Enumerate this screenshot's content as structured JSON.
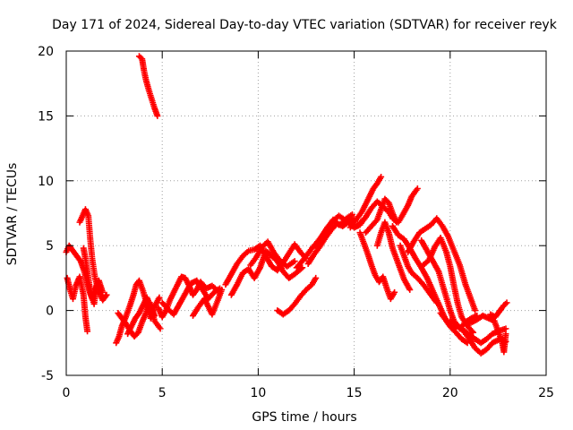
{
  "chart_data": {
    "type": "scatter",
    "title": "Day 171 of 2024, Sidereal Day-to-day VTEC variation (SDTVAR) for receiver reyk",
    "xlabel": "GPS time / hours",
    "ylabel": "SDTVAR / TECUs",
    "xlim": [
      0,
      25
    ],
    "ylim": [
      -5,
      20
    ],
    "xticks": [
      0,
      5,
      10,
      15,
      20,
      25
    ],
    "yticks": [
      -5,
      0,
      5,
      10,
      15,
      20
    ],
    "grid": true,
    "marker": "+",
    "series_color": "#ff0000",
    "tracks": [
      [
        [
          0.0,
          4.5
        ],
        [
          0.15,
          5.0
        ],
        [
          0.35,
          4.6
        ],
        [
          0.55,
          4.2
        ],
        [
          0.75,
          3.8
        ],
        [
          0.9,
          3.2
        ],
        [
          1.05,
          2.4
        ],
        [
          1.2,
          1.5
        ],
        [
          1.35,
          0.9
        ],
        [
          1.5,
          1.6
        ],
        [
          1.7,
          2.3
        ],
        [
          1.9,
          1.4
        ]
      ],
      [
        [
          0.05,
          2.5
        ],
        [
          0.2,
          1.6
        ],
        [
          0.35,
          0.9
        ],
        [
          0.5,
          1.9
        ],
        [
          0.7,
          2.6
        ],
        [
          0.9,
          1.2
        ],
        [
          1.0,
          -0.5
        ],
        [
          1.1,
          -1.6
        ]
      ],
      [
        [
          0.7,
          6.8
        ],
        [
          0.85,
          7.3
        ],
        [
          1.0,
          7.8
        ],
        [
          1.15,
          7.3
        ],
        [
          1.25,
          5.5
        ],
        [
          1.35,
          4.0
        ],
        [
          1.5,
          2.5
        ],
        [
          1.7,
          1.5
        ],
        [
          1.9,
          0.8
        ],
        [
          2.1,
          1.2
        ]
      ],
      [
        [
          0.9,
          4.8
        ],
        [
          1.0,
          4.0
        ],
        [
          1.1,
          3.0
        ],
        [
          1.2,
          2.0
        ],
        [
          1.3,
          1.2
        ],
        [
          1.45,
          0.5
        ],
        [
          1.6,
          2.2
        ],
        [
          1.8,
          1.8
        ]
      ],
      [
        [
          3.8,
          19.6
        ],
        [
          3.95,
          19.4
        ],
        [
          4.05,
          18.5
        ],
        [
          4.15,
          17.8
        ],
        [
          4.3,
          17.0
        ],
        [
          4.45,
          16.3
        ],
        [
          4.6,
          15.6
        ],
        [
          4.75,
          15.0
        ]
      ],
      [
        [
          2.6,
          -2.5
        ],
        [
          2.75,
          -2.0
        ],
        [
          2.9,
          -1.2
        ],
        [
          3.1,
          -0.5
        ],
        [
          3.3,
          0.3
        ],
        [
          3.5,
          1.2
        ],
        [
          3.65,
          2.0
        ],
        [
          3.8,
          2.3
        ],
        [
          4.0,
          1.5
        ],
        [
          4.2,
          0.5
        ],
        [
          4.4,
          -0.6
        ],
        [
          4.6,
          0.3
        ],
        [
          4.85,
          1.0
        ]
      ],
      [
        [
          2.7,
          -0.2
        ],
        [
          2.9,
          -0.6
        ],
        [
          3.1,
          -1.0
        ],
        [
          3.3,
          -1.5
        ],
        [
          3.55,
          -2.0
        ],
        [
          3.75,
          -1.7
        ],
        [
          3.95,
          -0.9
        ],
        [
          4.15,
          -0.2
        ],
        [
          4.35,
          0.6
        ],
        [
          4.6,
          -0.8
        ],
        [
          4.9,
          -1.4
        ]
      ],
      [
        [
          3.2,
          -1.8
        ],
        [
          3.4,
          -1.2
        ],
        [
          3.6,
          -0.6
        ],
        [
          3.8,
          -0.2
        ],
        [
          4.0,
          0.4
        ],
        [
          4.2,
          1.0
        ],
        [
          4.4,
          0.3
        ],
        [
          4.6,
          -0.4
        ]
      ],
      [
        [
          4.8,
          0.2
        ],
        [
          5.0,
          -0.5
        ],
        [
          5.2,
          0.0
        ],
        [
          5.4,
          0.8
        ],
        [
          5.6,
          1.4
        ],
        [
          5.8,
          2.0
        ],
        [
          6.0,
          2.6
        ],
        [
          6.2,
          2.5
        ],
        [
          6.4,
          1.9
        ],
        [
          6.6,
          1.2
        ],
        [
          6.8,
          1.6
        ],
        [
          7.0,
          2.2
        ],
        [
          7.3,
          1.7
        ],
        [
          7.6,
          1.9
        ],
        [
          7.9,
          1.5
        ]
      ],
      [
        [
          5.0,
          0.6
        ],
        [
          5.3,
          0.1
        ],
        [
          5.6,
          -0.3
        ],
        [
          5.9,
          0.5
        ],
        [
          6.2,
          1.3
        ],
        [
          6.5,
          2.1
        ],
        [
          6.8,
          2.3
        ],
        [
          7.1,
          1.6
        ],
        [
          7.4,
          0.9
        ],
        [
          7.7,
          1.4
        ],
        [
          8.0,
          1.7
        ]
      ],
      [
        [
          6.6,
          -0.4
        ],
        [
          6.9,
          0.3
        ],
        [
          7.2,
          0.9
        ],
        [
          7.4,
          0.3
        ],
        [
          7.6,
          -0.3
        ],
        [
          7.9,
          0.8
        ],
        [
          8.1,
          1.6
        ]
      ],
      [
        [
          8.3,
          2.0
        ],
        [
          8.6,
          2.8
        ],
        [
          8.9,
          3.6
        ],
        [
          9.2,
          4.2
        ],
        [
          9.5,
          4.6
        ],
        [
          9.8,
          4.7
        ],
        [
          10.1,
          5.0
        ],
        [
          10.4,
          4.2
        ],
        [
          10.7,
          3.4
        ],
        [
          11.0,
          3.1
        ],
        [
          11.3,
          3.7
        ],
        [
          11.6,
          4.4
        ],
        [
          11.9,
          5.1
        ],
        [
          12.2,
          4.5
        ],
        [
          12.5,
          4.0
        ]
      ],
      [
        [
          8.6,
          1.2
        ],
        [
          8.9,
          2.0
        ],
        [
          9.2,
          2.9
        ],
        [
          9.5,
          3.2
        ],
        [
          9.8,
          2.5
        ],
        [
          10.1,
          3.3
        ],
        [
          10.4,
          4.6
        ],
        [
          10.7,
          4.2
        ],
        [
          11.0,
          3.8
        ],
        [
          11.3,
          3.0
        ],
        [
          11.6,
          2.5
        ],
        [
          11.9,
          2.8
        ],
        [
          12.3,
          3.3
        ]
      ],
      [
        [
          9.6,
          3.5
        ],
        [
          9.9,
          4.1
        ],
        [
          10.2,
          4.9
        ],
        [
          10.5,
          5.3
        ],
        [
          10.8,
          4.5
        ],
        [
          11.1,
          3.9
        ],
        [
          11.5,
          3.4
        ],
        [
          11.9,
          3.8
        ]
      ],
      [
        [
          11.0,
          0.0
        ],
        [
          11.3,
          -0.3
        ],
        [
          11.6,
          0.0
        ],
        [
          11.9,
          0.5
        ],
        [
          12.2,
          1.1
        ],
        [
          12.5,
          1.6
        ],
        [
          12.8,
          2.0
        ],
        [
          13.0,
          2.5
        ]
      ],
      [
        [
          12.0,
          3.3
        ],
        [
          12.4,
          4.0
        ],
        [
          12.8,
          4.8
        ],
        [
          13.2,
          5.5
        ],
        [
          13.6,
          6.3
        ],
        [
          13.9,
          7.0
        ],
        [
          14.2,
          6.6
        ],
        [
          14.6,
          6.9
        ],
        [
          15.0,
          6.4
        ],
        [
          15.3,
          6.6
        ],
        [
          15.6,
          7.2
        ]
      ],
      [
        [
          12.6,
          3.6
        ],
        [
          12.9,
          4.3
        ],
        [
          13.2,
          4.9
        ],
        [
          13.5,
          5.6
        ],
        [
          13.8,
          6.2
        ],
        [
          14.1,
          6.7
        ],
        [
          14.4,
          6.5
        ],
        [
          14.7,
          6.8
        ],
        [
          15.0,
          7.1
        ]
      ],
      [
        [
          13.0,
          5.0
        ],
        [
          13.3,
          5.7
        ],
        [
          13.6,
          6.4
        ],
        [
          13.9,
          6.9
        ],
        [
          14.2,
          7.3
        ],
        [
          14.5,
          7.0
        ],
        [
          14.9,
          7.4
        ]
      ],
      [
        [
          14.8,
          6.4
        ],
        [
          15.1,
          7.0
        ],
        [
          15.4,
          7.6
        ],
        [
          15.6,
          8.2
        ],
        [
          15.8,
          8.8
        ],
        [
          16.0,
          9.4
        ],
        [
          16.2,
          9.8
        ],
        [
          16.4,
          10.3
        ]
      ],
      [
        [
          15.3,
          6.0
        ],
        [
          15.5,
          5.2
        ],
        [
          15.7,
          4.4
        ],
        [
          15.9,
          3.5
        ],
        [
          16.1,
          2.7
        ],
        [
          16.3,
          2.2
        ],
        [
          16.5,
          2.6
        ],
        [
          16.7,
          1.7
        ],
        [
          16.9,
          0.9
        ],
        [
          17.1,
          1.4
        ]
      ],
      [
        [
          15.2,
          6.6
        ],
        [
          15.6,
          7.2
        ],
        [
          15.9,
          7.9
        ],
        [
          16.2,
          8.4
        ],
        [
          16.5,
          8.0
        ],
        [
          16.8,
          7.6
        ],
        [
          17.0,
          7.1
        ],
        [
          17.3,
          6.8
        ],
        [
          17.5,
          7.3
        ],
        [
          17.8,
          8.1
        ],
        [
          18.0,
          8.8
        ],
        [
          18.3,
          9.4
        ]
      ],
      [
        [
          15.6,
          6.0
        ],
        [
          15.9,
          6.5
        ],
        [
          16.2,
          7.0
        ],
        [
          16.4,
          7.8
        ],
        [
          16.6,
          8.6
        ],
        [
          16.8,
          8.3
        ],
        [
          17.0,
          7.5
        ],
        [
          17.2,
          6.8
        ]
      ],
      [
        [
          16.2,
          5.0
        ],
        [
          16.4,
          6.0
        ],
        [
          16.6,
          6.8
        ],
        [
          16.8,
          6.0
        ],
        [
          17.0,
          4.8
        ],
        [
          17.3,
          3.6
        ],
        [
          17.6,
          2.4
        ],
        [
          17.9,
          1.6
        ]
      ],
      [
        [
          17.4,
          5.0
        ],
        [
          17.6,
          4.2
        ],
        [
          17.8,
          3.4
        ],
        [
          18.0,
          2.9
        ],
        [
          18.3,
          2.5
        ],
        [
          18.6,
          2.0
        ],
        [
          18.9,
          1.4
        ],
        [
          19.1,
          1.0
        ],
        [
          19.3,
          0.6
        ]
      ],
      [
        [
          17.0,
          6.5
        ],
        [
          17.3,
          5.8
        ],
        [
          17.6,
          5.5
        ],
        [
          17.9,
          4.8
        ],
        [
          18.2,
          4.0
        ],
        [
          18.5,
          3.3
        ],
        [
          18.8,
          2.5
        ],
        [
          19.1,
          1.5
        ],
        [
          19.4,
          0.5
        ],
        [
          19.7,
          -0.5
        ],
        [
          20.0,
          -1.2
        ],
        [
          20.3,
          -1.7
        ],
        [
          20.6,
          -2.2
        ],
        [
          20.9,
          -2.5
        ]
      ],
      [
        [
          17.8,
          4.5
        ],
        [
          18.1,
          5.3
        ],
        [
          18.4,
          6.0
        ],
        [
          18.7,
          6.3
        ],
        [
          19.0,
          6.6
        ],
        [
          19.3,
          7.1
        ],
        [
          19.6,
          6.5
        ],
        [
          19.9,
          5.7
        ],
        [
          20.2,
          4.6
        ],
        [
          20.5,
          3.5
        ],
        [
          20.8,
          2.0
        ],
        [
          21.1,
          0.8
        ],
        [
          21.3,
          0.0
        ]
      ],
      [
        [
          18.5,
          5.4
        ],
        [
          18.8,
          4.6
        ],
        [
          19.1,
          3.8
        ],
        [
          19.4,
          3.0
        ],
        [
          19.6,
          2.0
        ],
        [
          19.8,
          1.0
        ],
        [
          20.0,
          0.0
        ],
        [
          20.2,
          -0.8
        ],
        [
          20.5,
          -1.4
        ],
        [
          20.8,
          -0.9
        ],
        [
          21.1,
          -0.6
        ],
        [
          21.4,
          -0.4
        ]
      ],
      [
        [
          18.6,
          3.5
        ],
        [
          18.9,
          3.9
        ],
        [
          19.2,
          4.9
        ],
        [
          19.5,
          5.6
        ],
        [
          19.8,
          4.5
        ],
        [
          20.0,
          3.4
        ],
        [
          20.2,
          1.9
        ],
        [
          20.4,
          0.5
        ],
        [
          20.6,
          -0.5
        ],
        [
          20.9,
          -1.2
        ],
        [
          21.2,
          -1.7
        ]
      ],
      [
        [
          19.5,
          -0.2
        ],
        [
          19.8,
          -0.8
        ],
        [
          20.1,
          -1.4
        ],
        [
          20.4,
          -1.2
        ],
        [
          20.7,
          -1.6
        ],
        [
          21.0,
          -2.2
        ],
        [
          21.3,
          -2.9
        ],
        [
          21.6,
          -3.3
        ],
        [
          21.9,
          -3.0
        ],
        [
          22.2,
          -2.5
        ],
        [
          22.6,
          -2.2
        ],
        [
          22.9,
          -2.4
        ]
      ],
      [
        [
          20.0,
          -0.8
        ],
        [
          20.3,
          -1.1
        ],
        [
          20.7,
          -1.5
        ],
        [
          21.0,
          -1.9
        ],
        [
          21.3,
          -2.2
        ],
        [
          21.6,
          -2.5
        ],
        [
          21.9,
          -2.2
        ],
        [
          22.2,
          -1.8
        ],
        [
          22.5,
          -1.6
        ],
        [
          22.9,
          -1.4
        ]
      ],
      [
        [
          21.0,
          -1.0
        ],
        [
          21.4,
          -0.7
        ],
        [
          21.7,
          -0.4
        ],
        [
          22.0,
          -0.6
        ],
        [
          22.3,
          -0.8
        ],
        [
          22.5,
          -1.6
        ],
        [
          22.7,
          -2.4
        ],
        [
          22.8,
          -3.2
        ],
        [
          22.9,
          -1.8
        ]
      ],
      [
        [
          22.1,
          -0.3
        ],
        [
          22.35,
          -0.5
        ],
        [
          22.6,
          0.0
        ],
        [
          22.8,
          0.4
        ],
        [
          22.95,
          0.6
        ]
      ]
    ]
  }
}
